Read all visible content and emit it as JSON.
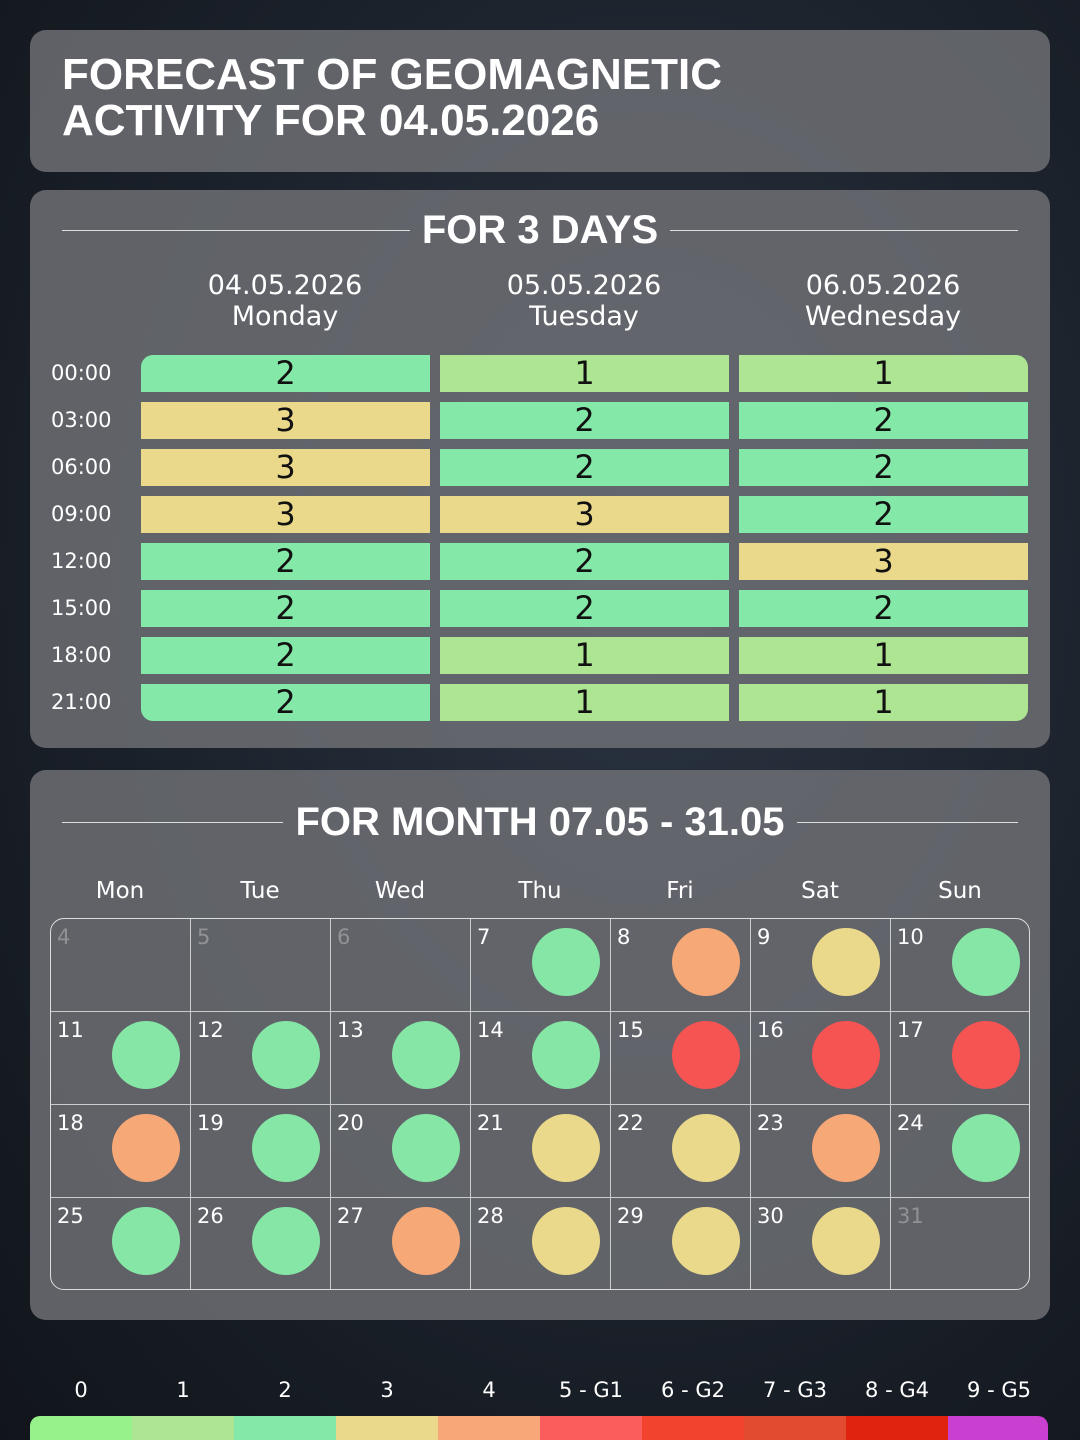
{
  "header": {
    "title": "FORECAST OF GEOMAGNETIC ACTIVITY FOR 04.05.2026"
  },
  "three_day": {
    "heading": "FOR 3 DAYS",
    "days": [
      {
        "date": "04.05.2026",
        "weekday": "Monday"
      },
      {
        "date": "05.05.2026",
        "weekday": "Tuesday"
      },
      {
        "date": "06.05.2026",
        "weekday": "Wednesday"
      }
    ],
    "rows": [
      {
        "time": "00:00",
        "values": [
          2,
          1,
          1
        ]
      },
      {
        "time": "03:00",
        "values": [
          3,
          2,
          2
        ]
      },
      {
        "time": "06:00",
        "values": [
          3,
          2,
          2
        ]
      },
      {
        "time": "09:00",
        "values": [
          3,
          3,
          2
        ]
      },
      {
        "time": "12:00",
        "values": [
          2,
          2,
          3
        ]
      },
      {
        "time": "15:00",
        "values": [
          2,
          2,
          2
        ]
      },
      {
        "time": "18:00",
        "values": [
          2,
          1,
          1
        ]
      },
      {
        "time": "21:00",
        "values": [
          2,
          1,
          1
        ]
      }
    ]
  },
  "month": {
    "heading": "FOR MONTH 07.05 - 31.05",
    "weekdays": [
      "Mon",
      "Tue",
      "Wed",
      "Thu",
      "Fri",
      "Sat",
      "Sun"
    ],
    "weeks": [
      [
        {
          "day": 4,
          "color": null
        },
        {
          "day": 5,
          "color": null
        },
        {
          "day": 6,
          "color": null
        },
        {
          "day": 7,
          "color": "#86e6a6"
        },
        {
          "day": 8,
          "color": "#f7a877"
        },
        {
          "day": 9,
          "color": "#ebd98b"
        },
        {
          "day": 10,
          "color": "#86e6a6"
        }
      ],
      [
        {
          "day": 11,
          "color": "#86e6a6"
        },
        {
          "day": 12,
          "color": "#86e6a6"
        },
        {
          "day": 13,
          "color": "#86e6a6"
        },
        {
          "day": 14,
          "color": "#86e6a6"
        },
        {
          "day": 15,
          "color": "#f65353"
        },
        {
          "day": 16,
          "color": "#f65353"
        },
        {
          "day": 17,
          "color": "#f65353"
        }
      ],
      [
        {
          "day": 18,
          "color": "#f7a877"
        },
        {
          "day": 19,
          "color": "#86e6a6"
        },
        {
          "day": 20,
          "color": "#86e6a6"
        },
        {
          "day": 21,
          "color": "#ebd98b"
        },
        {
          "day": 22,
          "color": "#ebd98b"
        },
        {
          "day": 23,
          "color": "#f7a877"
        },
        {
          "day": 24,
          "color": "#86e6a6"
        }
      ],
      [
        {
          "day": 25,
          "color": "#86e6a6"
        },
        {
          "day": 26,
          "color": "#86e6a6"
        },
        {
          "day": 27,
          "color": "#f7a877"
        },
        {
          "day": 28,
          "color": "#ebd98b"
        },
        {
          "day": 29,
          "color": "#ebd98b"
        },
        {
          "day": 30,
          "color": "#ebd98b"
        },
        {
          "day": 31,
          "color": null
        }
      ]
    ]
  },
  "legend": {
    "items": [
      {
        "label": "0",
        "color": "#98f28c"
      },
      {
        "label": "1",
        "color": "#ade592"
      },
      {
        "label": "2",
        "color": "#84e8a8"
      },
      {
        "label": "3",
        "color": "#ebd98b"
      },
      {
        "label": "4",
        "color": "#f8a878"
      },
      {
        "label": "5 - G1",
        "color": "#fb5c5c"
      },
      {
        "label": "6 - G2",
        "color": "#f2432c"
      },
      {
        "label": "7 - G3",
        "color": "#e34b30"
      },
      {
        "label": "8 - G4",
        "color": "#e0230f"
      },
      {
        "label": "9 - G5",
        "color": "#c93fd0"
      }
    ]
  }
}
